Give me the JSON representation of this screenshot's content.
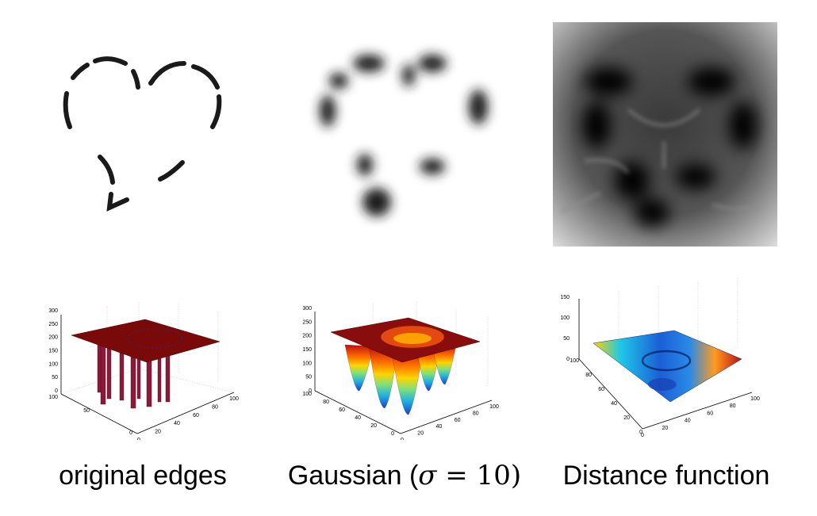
{
  "panels": [
    {
      "caption": "original edges",
      "axis3d": {
        "z_ticks": [
          "300",
          "250",
          "200",
          "150",
          "100",
          "50",
          "0"
        ],
        "y_ticks": [
          "100",
          "50",
          "0"
        ],
        "x_ticks": [
          "0",
          "20",
          "40",
          "60",
          "80",
          "100"
        ]
      }
    },
    {
      "caption_prefix": "Gaussian (",
      "caption_symbol": "σ",
      "caption_eq": " = 10)",
      "axis3d": {
        "z_ticks": [
          "300",
          "250",
          "200",
          "150",
          "100",
          "50",
          "0"
        ],
        "y_ticks": [
          "100",
          "80",
          "60",
          "40",
          "20",
          "0"
        ],
        "x_ticks": [
          "0",
          "20",
          "40",
          "60",
          "80",
          "100"
        ]
      }
    },
    {
      "caption": "Distance function",
      "axis3d": {
        "z_ticks": [
          "150",
          "100",
          "50",
          "0"
        ],
        "y_ticks": [
          "100",
          "80",
          "60",
          "40",
          "20",
          "0"
        ],
        "x_ticks": [
          "0",
          "20",
          "40",
          "60",
          "80",
          "100"
        ]
      }
    }
  ],
  "colors": {
    "surface_dark_red": "#7a0a0a",
    "jet_blue": "#1a5fd6",
    "jet_red": "#b81010"
  }
}
